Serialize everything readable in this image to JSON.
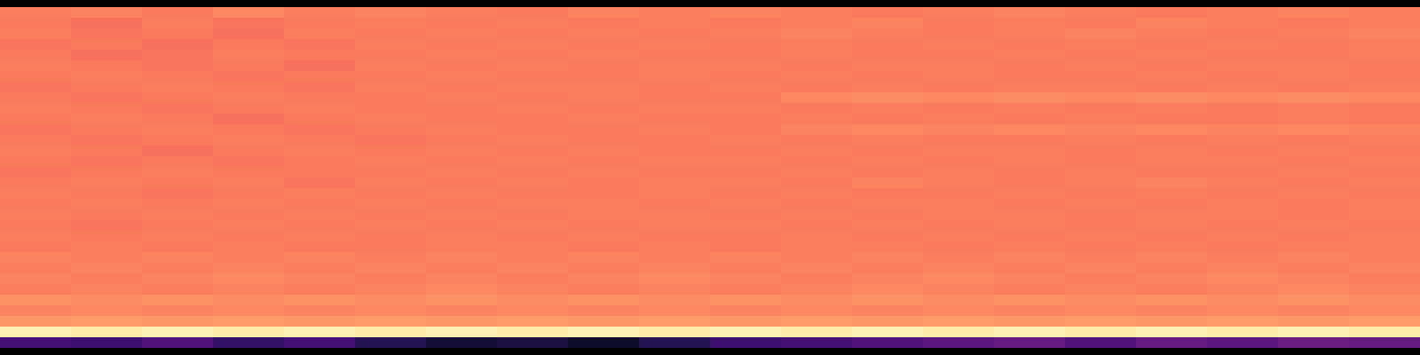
{
  "chart_data": {
    "type": "heatmap",
    "color": "magma",
    "zlim": [
      0,
      1
    ],
    "tick_labels": false,
    "cells": [
      [
        0.73,
        0.74,
        0.72,
        0.75,
        0.73,
        0.74,
        0.73,
        0.72,
        0.74,
        0.73,
        0.74,
        0.73,
        0.72,
        0.73,
        0.74,
        0.73,
        0.72,
        0.73,
        0.74,
        0.73
      ],
      [
        0.72,
        0.7,
        0.73,
        0.71,
        0.72,
        0.73,
        0.72,
        0.73,
        0.72,
        0.73,
        0.72,
        0.73,
        0.74,
        0.72,
        0.73,
        0.72,
        0.74,
        0.73,
        0.72,
        0.73
      ],
      [
        0.73,
        0.71,
        0.72,
        0.7,
        0.73,
        0.72,
        0.73,
        0.72,
        0.73,
        0.72,
        0.73,
        0.74,
        0.73,
        0.72,
        0.73,
        0.74,
        0.73,
        0.72,
        0.73,
        0.74
      ],
      [
        0.71,
        0.72,
        0.7,
        0.72,
        0.71,
        0.73,
        0.72,
        0.73,
        0.72,
        0.73,
        0.72,
        0.73,
        0.72,
        0.73,
        0.72,
        0.73,
        0.72,
        0.73,
        0.72,
        0.73
      ],
      [
        0.72,
        0.7,
        0.71,
        0.73,
        0.72,
        0.72,
        0.73,
        0.72,
        0.73,
        0.72,
        0.72,
        0.73,
        0.72,
        0.72,
        0.73,
        0.72,
        0.73,
        0.72,
        0.72,
        0.73
      ],
      [
        0.73,
        0.72,
        0.71,
        0.72,
        0.7,
        0.73,
        0.72,
        0.73,
        0.72,
        0.73,
        0.73,
        0.72,
        0.73,
        0.73,
        0.72,
        0.73,
        0.72,
        0.73,
        0.73,
        0.72
      ],
      [
        0.72,
        0.73,
        0.72,
        0.71,
        0.72,
        0.72,
        0.73,
        0.72,
        0.72,
        0.73,
        0.72,
        0.73,
        0.72,
        0.73,
        0.72,
        0.72,
        0.73,
        0.72,
        0.73,
        0.72
      ],
      [
        0.71,
        0.72,
        0.73,
        0.72,
        0.71,
        0.73,
        0.72,
        0.73,
        0.73,
        0.72,
        0.73,
        0.72,
        0.73,
        0.72,
        0.73,
        0.73,
        0.72,
        0.73,
        0.72,
        0.73
      ],
      [
        0.72,
        0.71,
        0.72,
        0.73,
        0.72,
        0.72,
        0.73,
        0.72,
        0.73,
        0.72,
        0.72,
        0.75,
        0.76,
        0.75,
        0.76,
        0.75,
        0.76,
        0.75,
        0.76,
        0.75
      ],
      [
        0.73,
        0.72,
        0.71,
        0.72,
        0.73,
        0.72,
        0.72,
        0.73,
        0.72,
        0.73,
        0.73,
        0.72,
        0.73,
        0.72,
        0.73,
        0.72,
        0.73,
        0.72,
        0.73,
        0.72
      ],
      [
        0.72,
        0.73,
        0.72,
        0.7,
        0.72,
        0.73,
        0.72,
        0.72,
        0.73,
        0.72,
        0.72,
        0.73,
        0.72,
        0.73,
        0.72,
        0.73,
        0.72,
        0.72,
        0.73,
        0.72
      ],
      [
        0.71,
        0.72,
        0.73,
        0.72,
        0.71,
        0.72,
        0.73,
        0.72,
        0.72,
        0.73,
        0.72,
        0.74,
        0.75,
        0.74,
        0.75,
        0.74,
        0.75,
        0.74,
        0.75,
        0.74
      ],
      [
        0.72,
        0.71,
        0.72,
        0.73,
        0.72,
        0.71,
        0.72,
        0.73,
        0.72,
        0.72,
        0.73,
        0.72,
        0.73,
        0.72,
        0.72,
        0.73,
        0.72,
        0.73,
        0.72,
        0.73
      ],
      [
        0.73,
        0.72,
        0.7,
        0.72,
        0.73,
        0.72,
        0.73,
        0.72,
        0.73,
        0.72,
        0.72,
        0.73,
        0.72,
        0.73,
        0.73,
        0.72,
        0.73,
        0.72,
        0.73,
        0.72
      ],
      [
        0.72,
        0.71,
        0.72,
        0.71,
        0.72,
        0.73,
        0.72,
        0.73,
        0.72,
        0.73,
        0.73,
        0.72,
        0.73,
        0.72,
        0.73,
        0.72,
        0.73,
        0.73,
        0.72,
        0.73
      ],
      [
        0.71,
        0.72,
        0.73,
        0.72,
        0.72,
        0.72,
        0.73,
        0.72,
        0.73,
        0.72,
        0.72,
        0.73,
        0.72,
        0.73,
        0.72,
        0.73,
        0.72,
        0.72,
        0.73,
        0.72
      ],
      [
        0.72,
        0.73,
        0.72,
        0.73,
        0.71,
        0.73,
        0.72,
        0.73,
        0.72,
        0.73,
        0.73,
        0.72,
        0.74,
        0.73,
        0.72,
        0.73,
        0.74,
        0.73,
        0.72,
        0.73
      ],
      [
        0.73,
        0.72,
        0.71,
        0.72,
        0.73,
        0.72,
        0.73,
        0.72,
        0.72,
        0.73,
        0.72,
        0.73,
        0.72,
        0.72,
        0.73,
        0.72,
        0.73,
        0.72,
        0.73,
        0.72
      ],
      [
        0.72,
        0.73,
        0.72,
        0.73,
        0.72,
        0.73,
        0.72,
        0.73,
        0.73,
        0.72,
        0.73,
        0.72,
        0.73,
        0.73,
        0.72,
        0.73,
        0.72,
        0.73,
        0.72,
        0.73
      ],
      [
        0.73,
        0.72,
        0.73,
        0.72,
        0.73,
        0.72,
        0.73,
        0.72,
        0.73,
        0.73,
        0.72,
        0.73,
        0.72,
        0.73,
        0.73,
        0.72,
        0.73,
        0.73,
        0.72,
        0.73
      ],
      [
        0.72,
        0.71,
        0.72,
        0.73,
        0.72,
        0.73,
        0.72,
        0.73,
        0.72,
        0.73,
        0.73,
        0.72,
        0.73,
        0.72,
        0.73,
        0.72,
        0.73,
        0.72,
        0.73,
        0.72
      ],
      [
        0.73,
        0.72,
        0.73,
        0.72,
        0.73,
        0.72,
        0.73,
        0.72,
        0.73,
        0.72,
        0.72,
        0.73,
        0.72,
        0.73,
        0.72,
        0.73,
        0.72,
        0.73,
        0.72,
        0.73
      ],
      [
        0.72,
        0.73,
        0.72,
        0.73,
        0.72,
        0.72,
        0.73,
        0.73,
        0.72,
        0.73,
        0.72,
        0.73,
        0.73,
        0.72,
        0.73,
        0.72,
        0.73,
        0.72,
        0.73,
        0.73
      ],
      [
        0.74,
        0.73,
        0.74,
        0.73,
        0.74,
        0.73,
        0.74,
        0.73,
        0.74,
        0.73,
        0.74,
        0.73,
        0.74,
        0.73,
        0.74,
        0.73,
        0.74,
        0.73,
        0.74,
        0.73
      ],
      [
        0.73,
        0.74,
        0.73,
        0.74,
        0.73,
        0.74,
        0.73,
        0.74,
        0.73,
        0.74,
        0.73,
        0.74,
        0.73,
        0.74,
        0.73,
        0.74,
        0.73,
        0.74,
        0.73,
        0.74
      ],
      [
        0.74,
        0.73,
        0.74,
        0.75,
        0.74,
        0.73,
        0.74,
        0.73,
        0.74,
        0.75,
        0.74,
        0.73,
        0.74,
        0.75,
        0.74,
        0.73,
        0.74,
        0.75,
        0.74,
        0.73
      ],
      [
        0.73,
        0.74,
        0.73,
        0.74,
        0.73,
        0.74,
        0.75,
        0.74,
        0.73,
        0.74,
        0.73,
        0.74,
        0.75,
        0.74,
        0.73,
        0.74,
        0.73,
        0.74,
        0.75,
        0.74
      ],
      [
        0.77,
        0.76,
        0.77,
        0.76,
        0.77,
        0.76,
        0.77,
        0.76,
        0.77,
        0.76,
        0.77,
        0.76,
        0.77,
        0.76,
        0.77,
        0.76,
        0.77,
        0.76,
        0.77,
        0.76
      ],
      [
        0.74,
        0.75,
        0.74,
        0.75,
        0.74,
        0.75,
        0.74,
        0.75,
        0.74,
        0.75,
        0.74,
        0.75,
        0.74,
        0.75,
        0.74,
        0.75,
        0.74,
        0.75,
        0.74,
        0.75
      ],
      [
        0.78,
        0.79,
        0.78,
        0.79,
        0.78,
        0.79,
        0.78,
        0.79,
        0.78,
        0.79,
        0.78,
        0.79,
        0.78,
        0.79,
        0.78,
        0.79,
        0.78,
        0.79,
        0.78,
        0.79
      ],
      [
        0.97,
        0.96,
        0.97,
        0.96,
        0.97,
        0.96,
        0.97,
        0.96,
        0.97,
        0.96,
        0.97,
        0.96,
        0.97,
        0.96,
        0.97,
        0.96,
        0.97,
        0.96,
        0.97,
        0.96
      ],
      [
        0.22,
        0.2,
        0.25,
        0.18,
        0.22,
        0.15,
        0.1,
        0.12,
        0.08,
        0.15,
        0.2,
        0.22,
        0.25,
        0.28,
        0.3,
        0.25,
        0.3,
        0.28,
        0.32,
        0.3
      ]
    ]
  }
}
